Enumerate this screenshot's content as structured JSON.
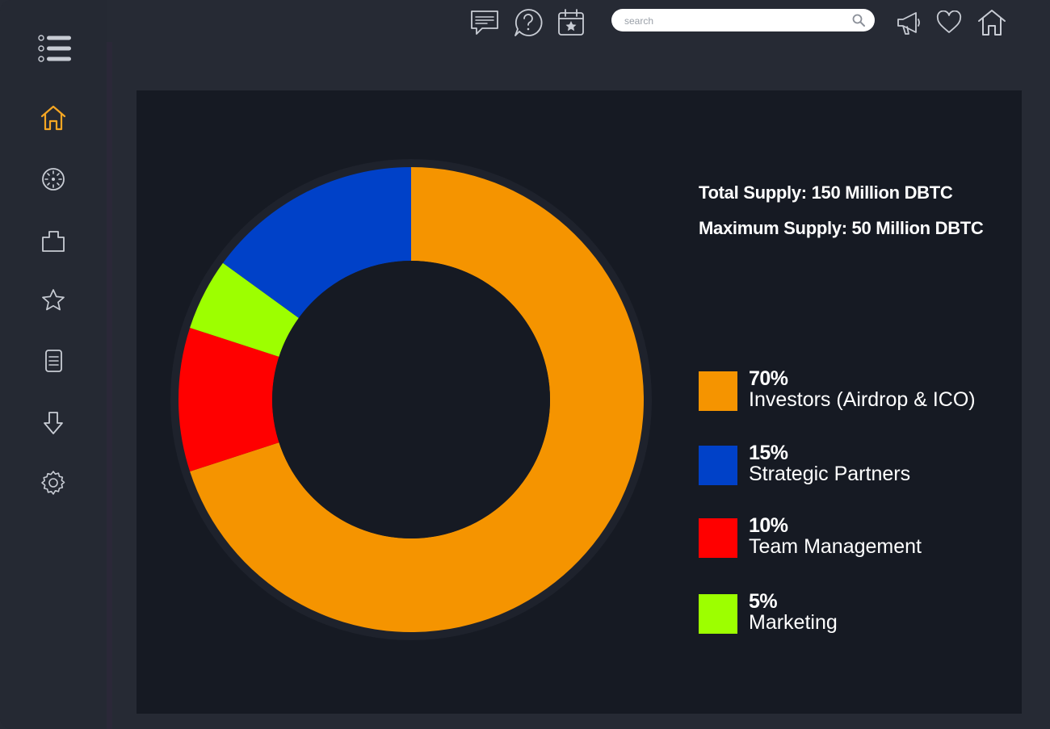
{
  "search": {
    "placeholder": "search"
  },
  "sidebar": {
    "items": [
      {
        "icon": "home-icon",
        "active": true
      },
      {
        "icon": "dashboard-icon",
        "active": false
      },
      {
        "icon": "bag-icon",
        "active": false
      },
      {
        "icon": "star-icon",
        "active": false
      },
      {
        "icon": "document-icon",
        "active": false
      },
      {
        "icon": "download-icon",
        "active": false
      },
      {
        "icon": "settings-icon",
        "active": false
      }
    ]
  },
  "topbar": {
    "left_icons": [
      "chat-icon",
      "help-icon",
      "calendar-star-icon"
    ],
    "right_icons": [
      "megaphone-icon",
      "heart-icon",
      "home-icon"
    ]
  },
  "colors": {
    "accent": "#f5a623",
    "panel_bg": "#161a23",
    "app_bg": "#262a34"
  },
  "supply": {
    "total": "Total Supply: 150 Million DBTC",
    "maximum": "Maximum Supply: 50 Million DBTC"
  },
  "chart_data": {
    "type": "pie",
    "donut": true,
    "title": "",
    "slices": [
      {
        "label": "Investors (Airdrop & ICO)",
        "percent_text": "70%",
        "value": 70,
        "color": "#f59400"
      },
      {
        "label": "Team Management",
        "percent_text": "10%",
        "value": 10,
        "color": "#ff0000"
      },
      {
        "label": "Marketing",
        "percent_text": "5%",
        "value": 5,
        "color": "#9dff00"
      },
      {
        "label": "Strategic Partners",
        "percent_text": "15%",
        "value": 15,
        "color": "#0041c8"
      }
    ],
    "legend": [
      {
        "percent": "70%",
        "label": "Investors (Airdrop & ICO)",
        "color": "#f59400"
      },
      {
        "percent": "15%",
        "label": "Strategic Partners",
        "color": "#0041c8"
      },
      {
        "percent": "10%",
        "label": "Team Management",
        "color": "#ff0000"
      },
      {
        "percent": "5%",
        "label": "Marketing",
        "color": "#9dff00"
      }
    ],
    "legend_position": "right"
  }
}
